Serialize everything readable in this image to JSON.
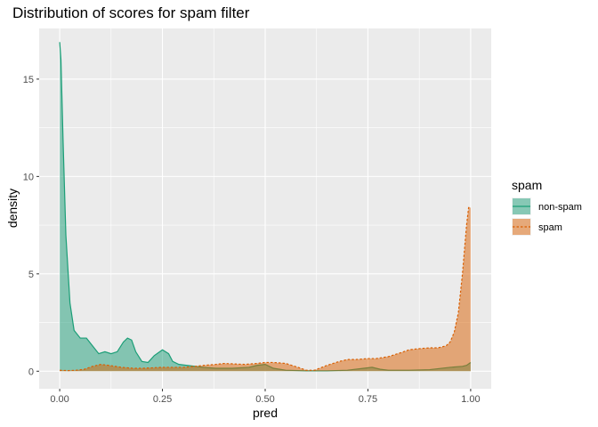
{
  "chart_data": {
    "type": "area",
    "title": "Distribution of scores for spam filter",
    "xlabel": "pred",
    "ylabel": "density",
    "xlim": [
      -0.05,
      1.05
    ],
    "ylim": [
      -0.9,
      17.6
    ],
    "x_ticks": [
      0.0,
      0.25,
      0.5,
      0.75,
      1.0
    ],
    "x_tick_labels": [
      "0.00",
      "0.25",
      "0.50",
      "0.75",
      "1.00"
    ],
    "y_ticks": [
      0,
      5,
      10,
      15
    ],
    "y_tick_labels": [
      "0",
      "5",
      "10",
      "15"
    ],
    "grid": true,
    "legend": {
      "title": "spam",
      "placement": "right",
      "entries": [
        "non-spam",
        "spam"
      ]
    },
    "series": [
      {
        "name": "non-spam",
        "color": "#1b9e77",
        "fill": "#1b9e77",
        "line_style": "solid",
        "x": [
          0.0,
          0.003,
          0.008,
          0.015,
          0.025,
          0.035,
          0.05,
          0.065,
          0.08,
          0.095,
          0.11,
          0.125,
          0.14,
          0.155,
          0.165,
          0.175,
          0.185,
          0.2,
          0.215,
          0.23,
          0.25,
          0.265,
          0.275,
          0.29,
          0.31,
          0.33,
          0.35,
          0.38,
          0.42,
          0.46,
          0.48,
          0.5,
          0.52,
          0.55,
          0.6,
          0.65,
          0.7,
          0.74,
          0.76,
          0.78,
          0.8,
          0.85,
          0.9,
          0.95,
          0.98,
          0.99,
          1.0
        ],
        "y": [
          16.9,
          16.0,
          12.0,
          7.0,
          3.5,
          2.1,
          1.7,
          1.7,
          1.3,
          0.9,
          1.0,
          0.9,
          1.0,
          1.5,
          1.7,
          1.6,
          1.0,
          0.5,
          0.45,
          0.8,
          1.1,
          0.9,
          0.5,
          0.35,
          0.3,
          0.25,
          0.2,
          0.15,
          0.15,
          0.2,
          0.3,
          0.35,
          0.15,
          0.05,
          0.02,
          0.02,
          0.05,
          0.15,
          0.2,
          0.1,
          0.05,
          0.05,
          0.08,
          0.2,
          0.25,
          0.3,
          0.45
        ]
      },
      {
        "name": "spam",
        "color": "#d95f02",
        "fill": "#d95f02",
        "line_style": "dashed",
        "x": [
          0.0,
          0.02,
          0.04,
          0.06,
          0.08,
          0.1,
          0.12,
          0.15,
          0.18,
          0.2,
          0.25,
          0.3,
          0.33,
          0.35,
          0.38,
          0.4,
          0.45,
          0.48,
          0.5,
          0.52,
          0.55,
          0.58,
          0.6,
          0.62,
          0.65,
          0.68,
          0.7,
          0.72,
          0.75,
          0.77,
          0.8,
          0.83,
          0.85,
          0.87,
          0.9,
          0.92,
          0.94,
          0.95,
          0.96,
          0.97,
          0.98,
          0.99,
          0.995,
          1.0
        ],
        "y": [
          0.05,
          0.03,
          0.05,
          0.1,
          0.25,
          0.35,
          0.3,
          0.2,
          0.15,
          0.15,
          0.2,
          0.2,
          0.25,
          0.3,
          0.35,
          0.4,
          0.35,
          0.4,
          0.45,
          0.45,
          0.4,
          0.2,
          0.05,
          0.05,
          0.3,
          0.5,
          0.6,
          0.6,
          0.65,
          0.65,
          0.75,
          0.95,
          1.1,
          1.15,
          1.2,
          1.2,
          1.3,
          1.5,
          2.0,
          3.0,
          5.0,
          7.5,
          8.4,
          8.4
        ]
      }
    ]
  }
}
